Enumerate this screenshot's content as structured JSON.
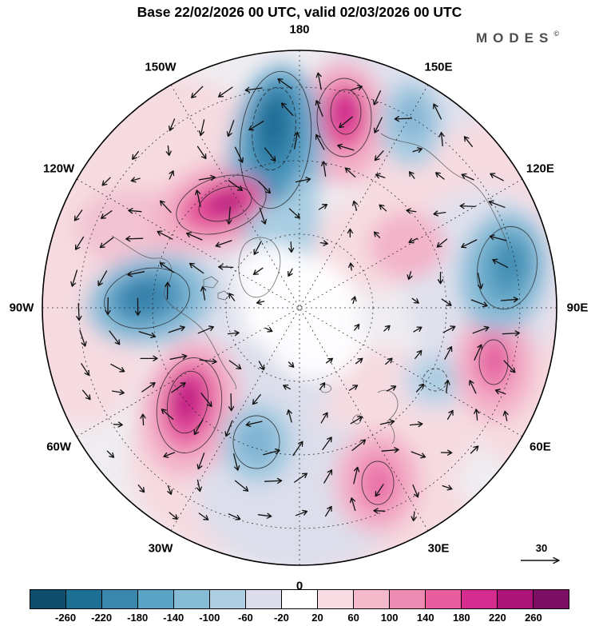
{
  "title": "Base 22/02/2026 00 UTC, valid 02/03/2026 00 UTC",
  "logo": {
    "text": "MODES",
    "symbol": "©"
  },
  "map": {
    "graticule_labels": [
      {
        "text": "180",
        "angle": 0
      },
      {
        "text": "150E",
        "angle": 30
      },
      {
        "text": "120E",
        "angle": 60
      },
      {
        "text": "90E",
        "angle": 90
      },
      {
        "text": "60E",
        "angle": 120
      },
      {
        "text": "30E",
        "angle": 150
      },
      {
        "text": "0",
        "angle": 180
      },
      {
        "text": "30W",
        "angle": 210
      },
      {
        "text": "60W",
        "angle": 240
      },
      {
        "text": "90W",
        "angle": 270
      },
      {
        "text": "120W",
        "angle": 300
      },
      {
        "text": "150W",
        "angle": 330
      }
    ]
  },
  "reference_vector": {
    "label": "30"
  },
  "colorbar": {
    "tick_labels": [
      "-260",
      "-220",
      "-180",
      "-140",
      "-100",
      "-60",
      "-20",
      "20",
      "60",
      "100",
      "140",
      "180",
      "220",
      "260"
    ],
    "colors": [
      "#0e4d6b",
      "#1d6f94",
      "#3a87ad",
      "#5ba3c4",
      "#86bcd6",
      "#aecfe3",
      "#dcdcea",
      "#ffffff",
      "#f8dee4",
      "#f4b9ca",
      "#ee8bb3",
      "#e85d9e",
      "#d42d8f",
      "#ad1478",
      "#7a0f63"
    ]
  },
  "chart_data": {
    "type": "heatmap",
    "projection": "north-polar-stereographic",
    "title": "Base 22/02/2026 00 UTC, valid 02/03/2026 00 UTC",
    "field": "anomaly shading with wind vector arrows",
    "colorbar_boundaries": [
      -260,
      -220,
      -180,
      -140,
      -100,
      -60,
      -20,
      20,
      60,
      100,
      140,
      180,
      220,
      260
    ],
    "colorbar_colors": [
      "#0e4d6b",
      "#1d6f94",
      "#3a87ad",
      "#5ba3c4",
      "#86bcd6",
      "#aecfe3",
      "#dcdcea",
      "#ffffff",
      "#f8dee4",
      "#f4b9ca",
      "#ee8bb3",
      "#e85d9e",
      "#d42d8f",
      "#ad1478",
      "#7a0f63"
    ],
    "longitude_labels": [
      "180",
      "150W",
      "120W",
      "90W",
      "60W",
      "30W",
      "0",
      "30E",
      "60E",
      "90E",
      "120E",
      "150E"
    ],
    "reference_vector_magnitude": 30,
    "anomaly_centers": [
      {
        "region": "near 180 high latitude",
        "sign": "negative",
        "approx_value": -240
      },
      {
        "region": "near 160E subpolar",
        "sign": "positive",
        "approx_value": 220
      },
      {
        "region": "near 150E outer edge",
        "sign": "negative",
        "approx_value": -100
      },
      {
        "region": "near 130W mid-latitude",
        "sign": "positive",
        "approx_value": 260
      },
      {
        "region": "near 95W mid-latitude",
        "sign": "negative",
        "approx_value": -180
      },
      {
        "region": "near 70W lower mid-latitude",
        "sign": "positive",
        "approx_value": 220
      },
      {
        "region": "near 45W low latitude",
        "sign": "negative",
        "approx_value": -140
      },
      {
        "region": "near 20E bottom sector",
        "sign": "positive",
        "approx_value": 120
      },
      {
        "region": "near 75E mid-latitude",
        "sign": "positive",
        "approx_value": 140
      },
      {
        "region": "near 100E high latitude",
        "sign": "negative",
        "approx_value": -180
      }
    ]
  }
}
